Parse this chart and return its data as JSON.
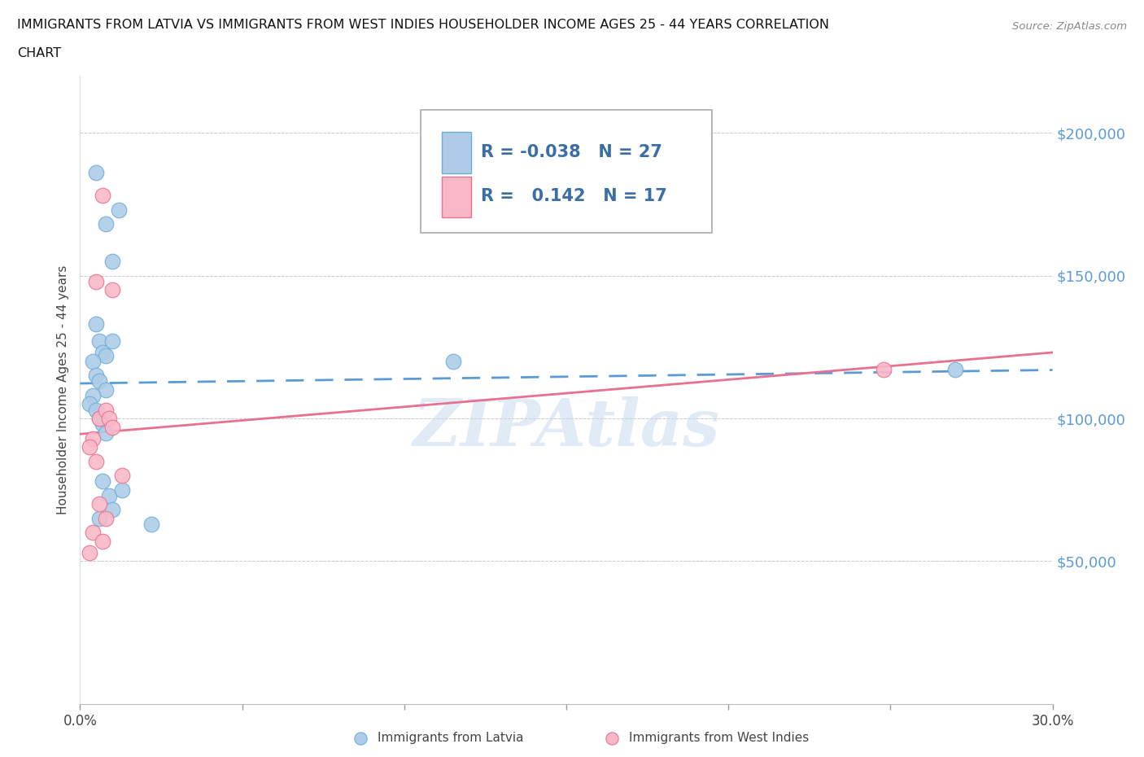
{
  "title_line1": "IMMIGRANTS FROM LATVIA VS IMMIGRANTS FROM WEST INDIES HOUSEHOLDER INCOME AGES 25 - 44 YEARS CORRELATION",
  "title_line2": "CHART",
  "source": "Source: ZipAtlas.com",
  "ylabel": "Householder Income Ages 25 - 44 years",
  "xlim": [
    0.0,
    0.3
  ],
  "ylim": [
    0,
    220000
  ],
  "yticks": [
    0,
    50000,
    100000,
    150000,
    200000
  ],
  "ytick_labels": [
    "",
    "$50,000",
    "$100,000",
    "$150,000",
    "$200,000"
  ],
  "xticks": [
    0.0,
    0.05,
    0.1,
    0.15,
    0.2,
    0.25,
    0.3
  ],
  "xtick_labels": [
    "0.0%",
    "",
    "",
    "",
    "",
    "",
    "30.0%"
  ],
  "watermark": "ZIPAtlas",
  "latvia_color": "#aecce8",
  "latvia_edge_color": "#6aaed6",
  "latvia_line_color": "#5b9bd5",
  "west_indies_color": "#f9b8c8",
  "west_indies_edge_color": "#e87090",
  "west_indies_line_color": "#e87090",
  "legend_R_latvia": "-0.038",
  "legend_N_latvia": "27",
  "legend_R_west_indies": "0.142",
  "legend_N_west_indies": "17",
  "background_color": "#ffffff",
  "grid_color": "#bbbbbb",
  "right_tick_color": "#5b9bd5",
  "latvia_x": [
    0.005,
    0.008,
    0.012,
    0.01,
    0.005,
    0.006,
    0.007,
    0.008,
    0.004,
    0.005,
    0.006,
    0.008,
    0.004,
    0.003,
    0.005,
    0.006,
    0.007,
    0.008,
    0.007,
    0.009,
    0.01,
    0.006,
    0.01,
    0.115,
    0.27,
    0.013,
    0.022
  ],
  "latvia_y": [
    186000,
    168000,
    173000,
    155000,
    133000,
    127000,
    123000,
    122000,
    120000,
    115000,
    113000,
    110000,
    108000,
    105000,
    103000,
    100000,
    98000,
    95000,
    78000,
    73000,
    68000,
    65000,
    127000,
    120000,
    117000,
    75000,
    63000
  ],
  "west_indies_x": [
    0.007,
    0.01,
    0.005,
    0.006,
    0.008,
    0.009,
    0.01,
    0.004,
    0.003,
    0.005,
    0.013,
    0.006,
    0.008,
    0.004,
    0.007,
    0.248,
    0.003
  ],
  "west_indies_y": [
    178000,
    145000,
    148000,
    100000,
    103000,
    100000,
    97000,
    93000,
    90000,
    85000,
    80000,
    70000,
    65000,
    60000,
    57000,
    117000,
    53000
  ],
  "legend_box_color": "#ffffff",
  "legend_border_color": "#aaaaaa"
}
